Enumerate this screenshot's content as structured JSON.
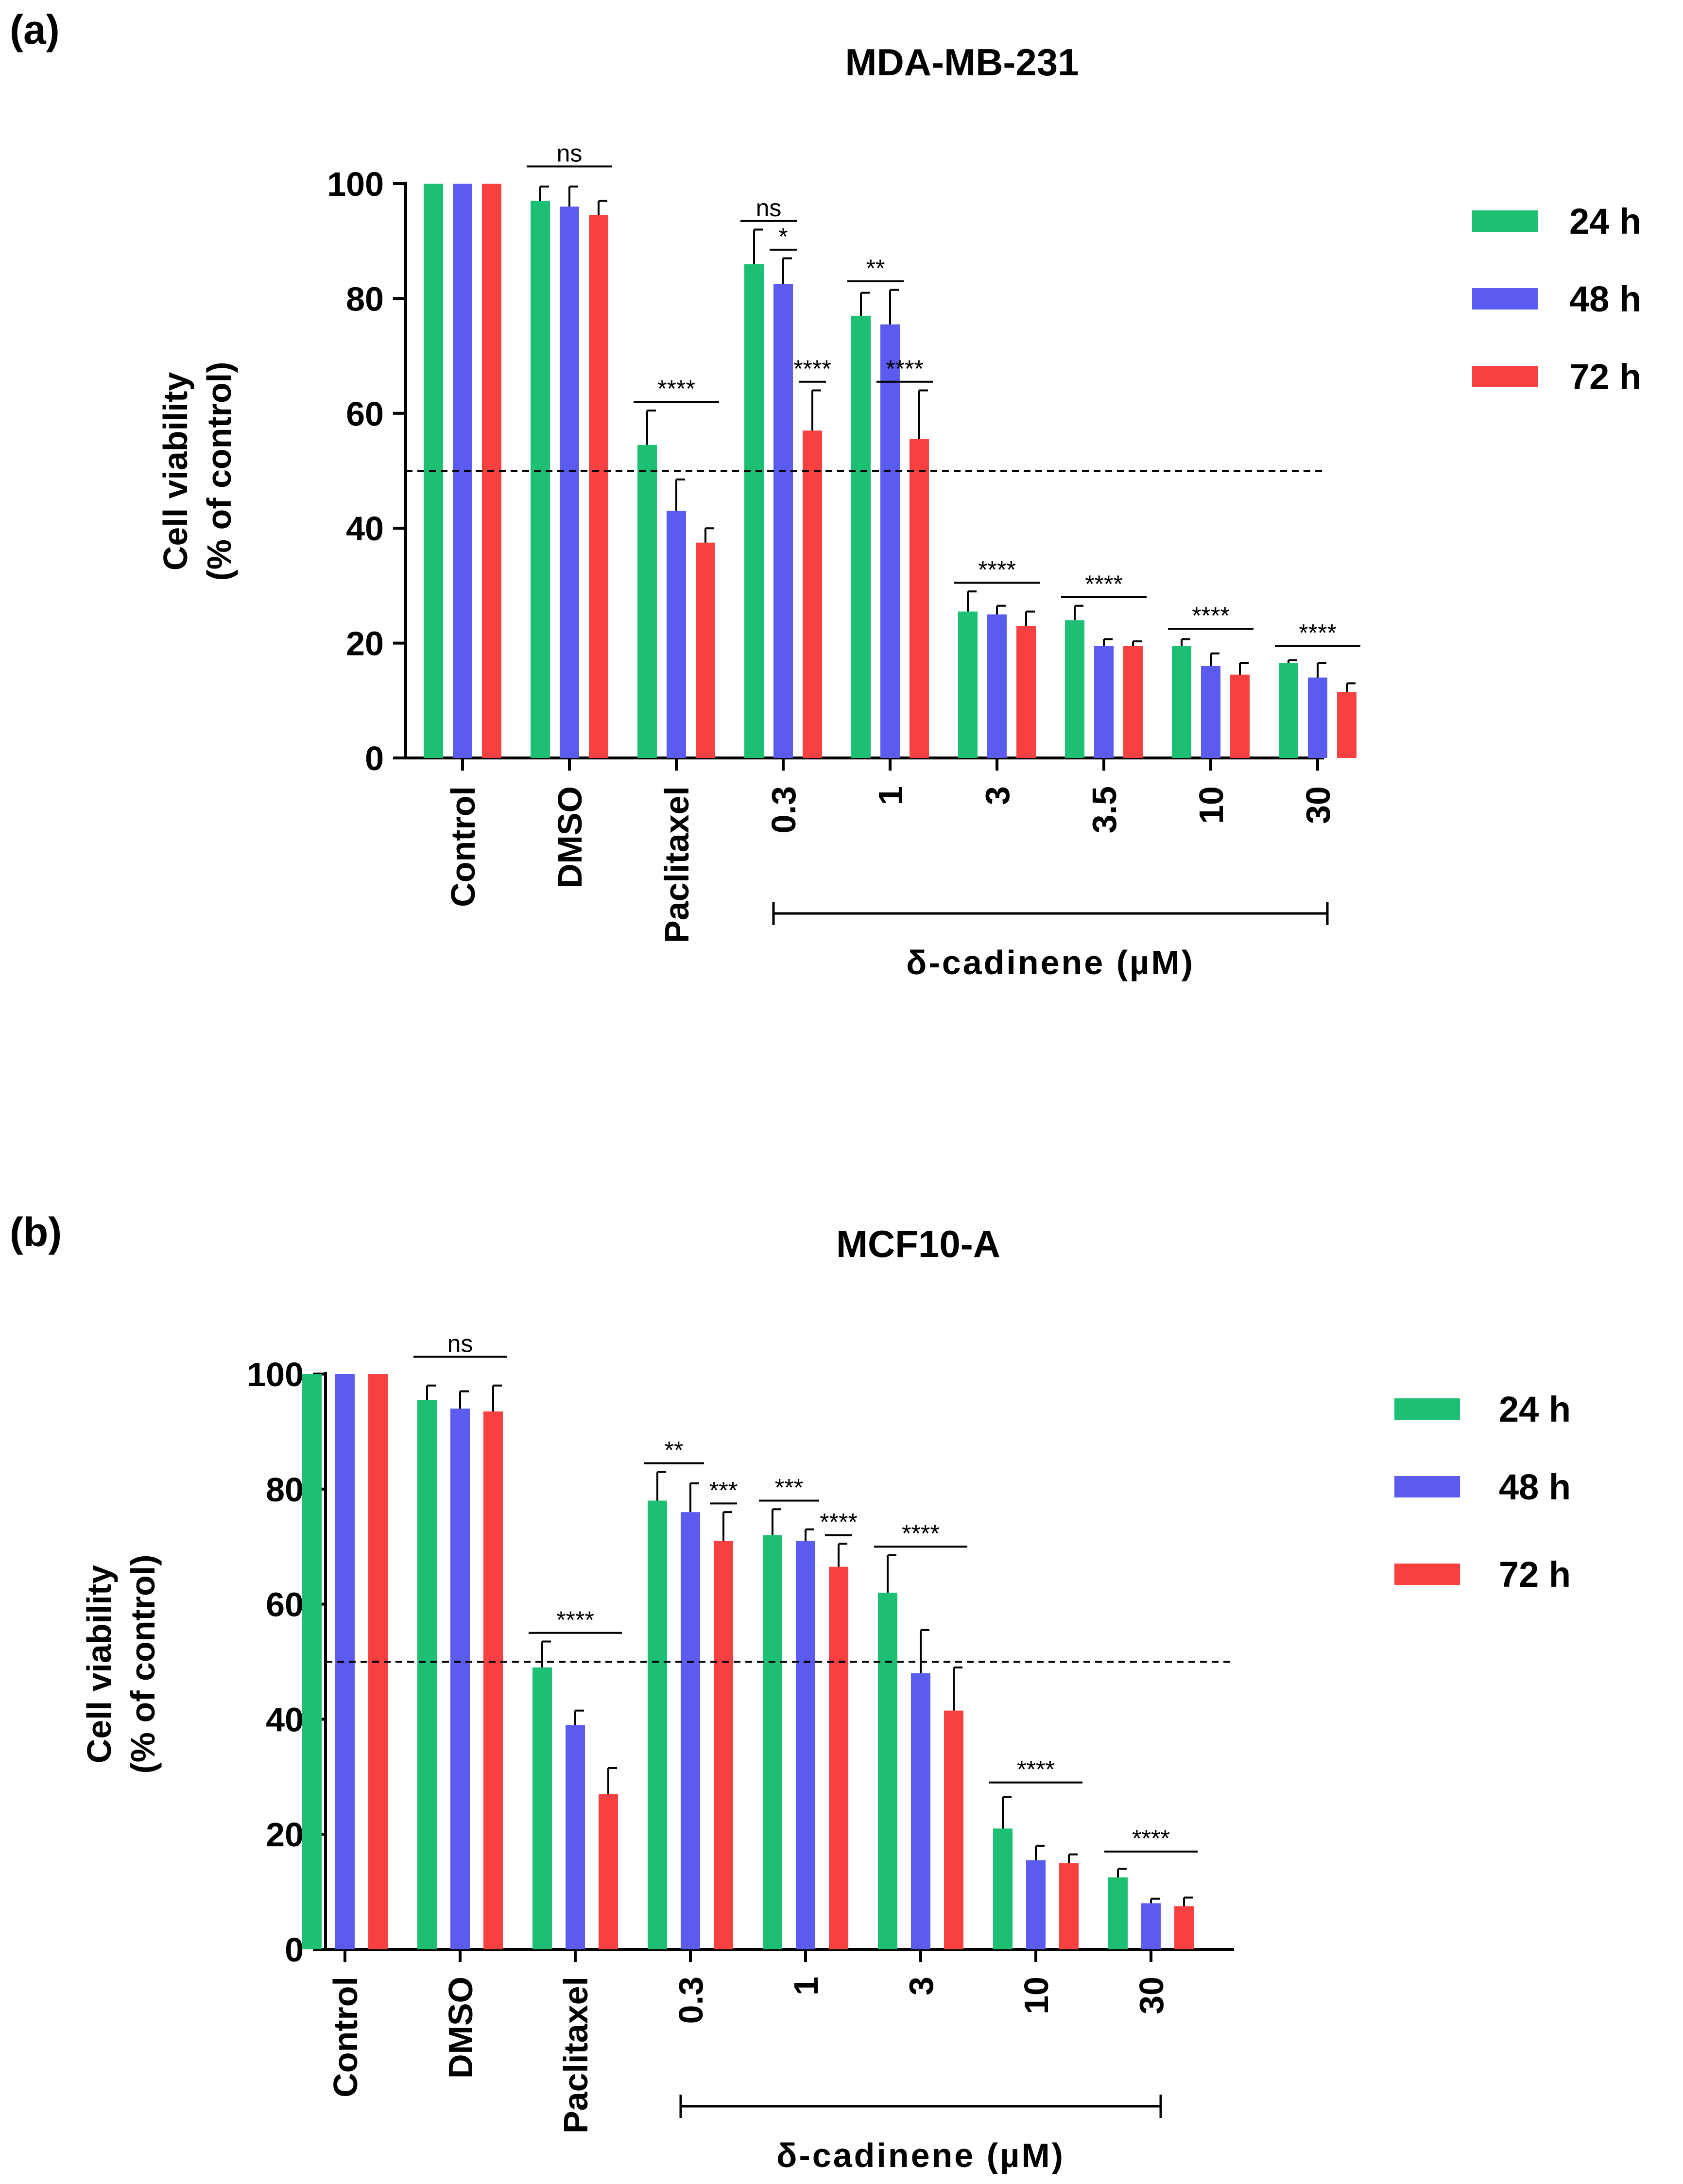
{
  "series_colors": {
    "24 h": "#1dbf73",
    "48 h": "#5b5bf0",
    "72 h": "#f7403f"
  },
  "chart_data": [
    {
      "type": "bar",
      "panel_label": "(a)",
      "title": "MDA-MB-231",
      "ylabel_line1": "Cell viability",
      "ylabel_line2": "(% of control)",
      "xlabel": "",
      "ylim": [
        0,
        100
      ],
      "yticks": [
        0,
        20,
        40,
        60,
        80,
        100
      ],
      "categories": [
        "Control",
        "DMSO",
        "Paclitaxel",
        "0.3",
        "1",
        "3",
        "3.5",
        "10",
        "30"
      ],
      "series": [
        {
          "name": "24 h",
          "values": [
            100,
            97,
            54.5,
            86,
            77,
            25.5,
            24,
            19.5,
            16.5
          ],
          "errors": [
            0,
            2.5,
            6,
            6,
            4,
            3.5,
            2.5,
            1.2,
            0.5
          ]
        },
        {
          "name": "48 h",
          "values": [
            100,
            96,
            43,
            82.5,
            75.5,
            25,
            19.5,
            16,
            14
          ],
          "errors": [
            0,
            3.5,
            5.5,
            4.5,
            6,
            1.5,
            1.2,
            2.2,
            2.5
          ]
        },
        {
          "name": "72 h",
          "values": [
            100,
            94.5,
            37.5,
            57,
            55.5,
            23,
            19.5,
            14.5,
            11.5
          ],
          "errors": [
            0,
            2.5,
            2.5,
            7,
            8.5,
            2.5,
            0.8,
            2,
            1.5
          ]
        }
      ],
      "reference_line": 50,
      "group_label": "δ-cadinene (µM)",
      "group_bracket_categories": [
        "0.3",
        "30"
      ],
      "significance": [
        {
          "label": "ns",
          "category": "DMSO",
          "from_series": 0,
          "to_series": 2,
          "y": 103
        },
        {
          "label": "****",
          "category": "Paclitaxel",
          "from_series": 0,
          "to_series": 2,
          "y": 62
        },
        {
          "label": "ns",
          "category": "0.3",
          "from_series": 0,
          "to_series": 1,
          "y": 93.5
        },
        {
          "label": "*",
          "category": "0.3",
          "from_series": 1,
          "to_series": 1,
          "y": 88.5
        },
        {
          "label": "****",
          "category": "0.3",
          "from_series": 2,
          "to_series": 2,
          "y": 65.5
        },
        {
          "label": "**",
          "category": "1",
          "from_series": 0,
          "to_series": 1,
          "y": 83
        },
        {
          "label": "****",
          "category": "1",
          "from_series": 1,
          "to_series": 2,
          "y": 65.5
        },
        {
          "label": "****",
          "category": "3",
          "from_series": 0,
          "to_series": 2,
          "y": 30.5
        },
        {
          "label": "****",
          "category": "3.5",
          "from_series": 0,
          "to_series": 2,
          "y": 28
        },
        {
          "label": "****",
          "category": "10",
          "from_series": 0,
          "to_series": 2,
          "y": 22.5
        },
        {
          "label": "****",
          "category": "30",
          "from_series": 0,
          "to_series": 2,
          "y": 19.5
        }
      ],
      "legend": [
        "24 h",
        "48 h",
        "72 h"
      ]
    },
    {
      "type": "bar",
      "panel_label": "(b)",
      "title": "MCF10-A",
      "ylabel_line1": "Cell viability",
      "ylabel_line2": "(% of control)",
      "xlabel": "",
      "ylim": [
        0,
        100
      ],
      "yticks": [
        0,
        20,
        40,
        60,
        80,
        100
      ],
      "categories": [
        "Control",
        "DMSO",
        "Paclitaxel",
        "0.3",
        "1",
        "3",
        "10",
        "30"
      ],
      "series": [
        {
          "name": "24 h",
          "values": [
            100,
            95.5,
            49,
            78,
            72,
            62,
            21,
            12.5
          ],
          "errors": [
            0,
            2.5,
            4.5,
            5,
            4.5,
            6.5,
            5.5,
            1.5
          ]
        },
        {
          "name": "48 h",
          "values": [
            100,
            94,
            39,
            76,
            71,
            48,
            15.5,
            8
          ],
          "errors": [
            0,
            3,
            2.5,
            5,
            2,
            7.5,
            2.5,
            0.8
          ]
        },
        {
          "name": "72 h",
          "values": [
            100,
            93.5,
            27,
            71,
            66.5,
            41.5,
            15,
            7.5
          ],
          "errors": [
            0,
            4.5,
            4.5,
            5,
            4,
            7.5,
            1.5,
            1.5
          ]
        }
      ],
      "reference_line": 50,
      "group_label": "δ-cadinene (µM)",
      "group_bracket_categories": [
        "0.3",
        "30"
      ],
      "significance": [
        {
          "label": "ns",
          "category": "DMSO",
          "from_series": 0,
          "to_series": 2,
          "y": 103
        },
        {
          "label": "****",
          "category": "Paclitaxel",
          "from_series": 0,
          "to_series": 2,
          "y": 55
        },
        {
          "label": "**",
          "category": "0.3",
          "from_series": 0,
          "to_series": 1,
          "y": 84.5
        },
        {
          "label": "***",
          "category": "0.3",
          "from_series": 2,
          "to_series": 2,
          "y": 77.5
        },
        {
          "label": "***",
          "category": "1",
          "from_series": 0,
          "to_series": 1,
          "y": 78
        },
        {
          "label": "****",
          "category": "1",
          "from_series": 2,
          "to_series": 2,
          "y": 72
        },
        {
          "label": "****",
          "category": "3",
          "from_series": 0,
          "to_series": 2,
          "y": 70
        },
        {
          "label": "****",
          "category": "10",
          "from_series": 0,
          "to_series": 2,
          "y": 29
        },
        {
          "label": "****",
          "category": "30",
          "from_series": 0,
          "to_series": 2,
          "y": 17
        }
      ],
      "legend": [
        "24 h",
        "48 h",
        "72 h"
      ]
    }
  ]
}
